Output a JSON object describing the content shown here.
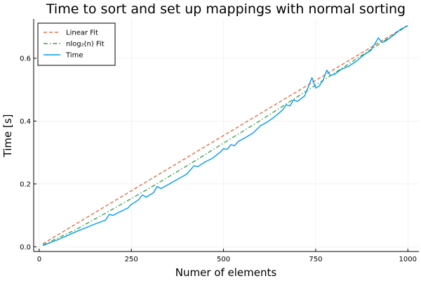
{
  "chart_data": {
    "type": "line",
    "title": "Time to sort and set up mappings with normal sorting",
    "xlabel": "Numer of elements",
    "ylabel": "Time [s]",
    "xlim": [
      -15,
      1030
    ],
    "ylim": [
      -0.015,
      0.725
    ],
    "xticks": [
      0,
      250,
      500,
      750,
      1000
    ],
    "xtick_labels": [
      "0",
      "250",
      "500",
      "750",
      "1000"
    ],
    "yticks": [
      0.0,
      0.2,
      0.4,
      0.6
    ],
    "ytick_labels": [
      "0.0",
      "0.2",
      "0.4",
      "0.6"
    ],
    "grid": true,
    "legend_position": "top-left",
    "series": [
      {
        "name": "Linear Fit",
        "style": "dashed",
        "color": "#e26f46",
        "x": [
          10,
          1000
        ],
        "y": [
          0.0095,
          0.705
        ]
      },
      {
        "name": "nlog₂(n) Fit",
        "style": "dashdot",
        "color": "#3da44d",
        "x": [
          10,
          100,
          200,
          300,
          400,
          500,
          600,
          700,
          800,
          900,
          1000
        ],
        "y": [
          0.0056,
          0.055,
          0.12,
          0.187,
          0.257,
          0.33,
          0.402,
          0.477,
          0.552,
          0.628,
          0.704
        ]
      },
      {
        "name": "Time",
        "style": "solid",
        "color": "#009af9",
        "x": [
          10,
          50,
          100,
          150,
          180,
          190,
          200,
          220,
          240,
          250,
          260,
          270,
          280,
          290,
          300,
          310,
          320,
          330,
          350,
          380,
          400,
          420,
          430,
          450,
          470,
          490,
          500,
          510,
          520,
          530,
          540,
          560,
          580,
          600,
          620,
          640,
          660,
          670,
          680,
          690,
          700,
          720,
          740,
          750,
          760,
          770,
          780,
          790,
          800,
          820,
          840,
          860,
          880,
          900,
          920,
          930,
          940,
          960,
          980,
          1000
        ],
        "y": [
          0.004,
          0.022,
          0.048,
          0.072,
          0.085,
          0.103,
          0.1,
          0.112,
          0.123,
          0.135,
          0.142,
          0.15,
          0.165,
          0.158,
          0.165,
          0.172,
          0.192,
          0.185,
          0.198,
          0.218,
          0.231,
          0.258,
          0.255,
          0.27,
          0.282,
          0.3,
          0.312,
          0.31,
          0.325,
          0.322,
          0.335,
          0.348,
          0.362,
          0.385,
          0.398,
          0.415,
          0.435,
          0.452,
          0.448,
          0.468,
          0.462,
          0.48,
          0.538,
          0.505,
          0.512,
          0.53,
          0.562,
          0.545,
          0.548,
          0.565,
          0.575,
          0.59,
          0.61,
          0.625,
          0.665,
          0.65,
          0.655,
          0.672,
          0.692,
          0.703
        ]
      }
    ]
  }
}
